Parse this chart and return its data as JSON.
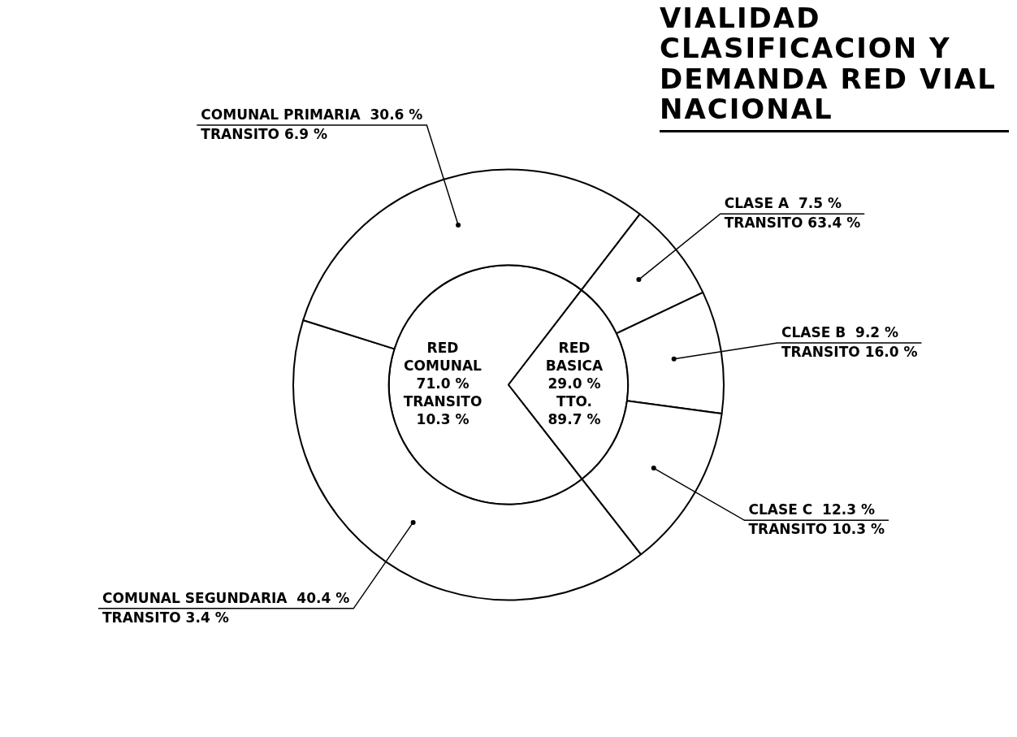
{
  "chart_data": {
    "type": "pie",
    "title": "VIALIDAD",
    "subtitle": "CLASIFICACION Y DEMANDA RED VIAL NACIONAL",
    "categories": [
      "COMUNAL SEGUNDARIA",
      "COMUNAL PRIMARIA",
      "CLASE A",
      "CLASE B",
      "CLASE C",
      "RED COMUNAL",
      "RED BASICA"
    ],
    "series": [
      {
        "values": [
          null,
          null,
          null,
          null,
          null,
          71.0,
          29.0
        ],
        "value_labels": [
          null,
          null,
          null,
          null,
          null,
          "71.0 %",
          "29.0 %"
        ],
        "colors": [
          "#ffffff",
          "#ffffff",
          "#ffffff",
          "#ffffff",
          "#ffffff",
          "#ffffff",
          "#ffffff"
        ]
      },
      {
        "values": [
          40.4,
          30.6,
          7.5,
          9.2,
          12.3,
          null,
          null
        ],
        "value_labels": [
          "40.4 %",
          "30.6 %",
          "7.5 %",
          "9.2 %",
          "12.3 %",
          null,
          null
        ],
        "colors": [
          "#ffffff",
          "#ffffff",
          "#ffffff",
          "#ffffff",
          "#ffffff",
          "#ffffff",
          "#ffffff"
        ]
      }
    ],
    "annotations": [
      "TRANSITO 3.4 %",
      "TRANSITO 6.9 %",
      "TRANSITO 63.4 %",
      "TRANSITO 16.0 %",
      "TRANSITO 10.3 %",
      "TRANSITO 10.3 %",
      "TTO. 89.7 %"
    ]
  }
}
